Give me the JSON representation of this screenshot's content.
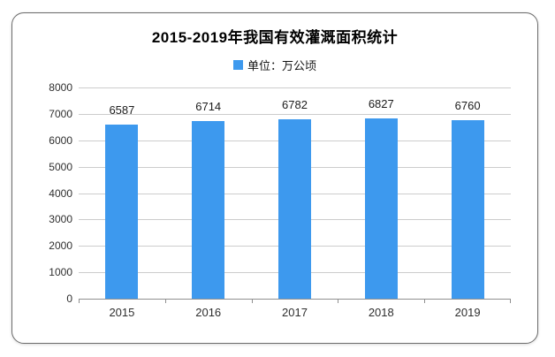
{
  "card": {
    "title": "2015-2019年我国有效灌溉面积统计",
    "legend_label": "单位：万公顷"
  },
  "chart_data": {
    "type": "bar",
    "title": "2015-2019年我国有效灌溉面积统计",
    "legend": "单位：万公顷",
    "categories": [
      "2015",
      "2016",
      "2017",
      "2018",
      "2019"
    ],
    "values": [
      6587,
      6714,
      6782,
      6827,
      6760
    ],
    "xlabel": "",
    "ylabel": "",
    "ylim": [
      0,
      8000
    ],
    "ytick_step": 1000,
    "grid": true,
    "legend_position": "top",
    "bar_color": "#3D99EE",
    "gridline_color": "#cccccc",
    "axis_line_color": "#8f8f8f"
  }
}
